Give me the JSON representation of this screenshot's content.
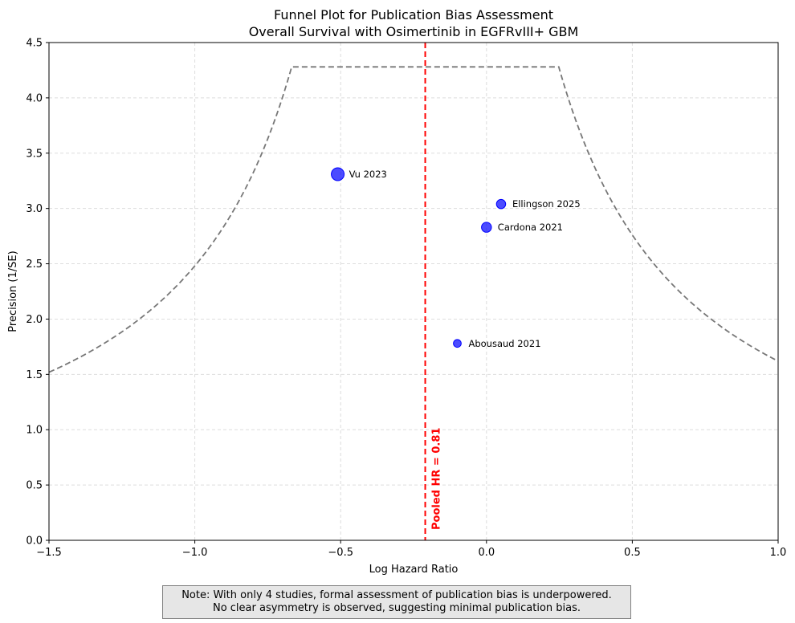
{
  "chart_data": {
    "type": "scatter",
    "title": "Funnel Plot for Publication Bias Assessment",
    "subtitle": "Overall Survival with Osimertinib in EGFRvIII+ GBM",
    "xlabel": "Log Hazard Ratio",
    "ylabel": "Precision (1/SE)",
    "xlim": [
      -1.5,
      1.0
    ],
    "ylim": [
      0.0,
      4.5
    ],
    "xticks": [
      -1.5,
      -1.0,
      -0.5,
      0.0,
      0.5,
      1.0
    ],
    "xtick_labels": [
      "−1.5",
      "−1.0",
      "−0.5",
      "0.0",
      "0.5",
      "1.0"
    ],
    "yticks": [
      0.0,
      0.5,
      1.0,
      1.5,
      2.0,
      2.5,
      3.0,
      3.5,
      4.0,
      4.5
    ],
    "ytick_labels": [
      "0.0",
      "0.5",
      "1.0",
      "1.5",
      "2.0",
      "2.5",
      "3.0",
      "3.5",
      "4.0",
      "4.5"
    ],
    "grid": true,
    "points": [
      {
        "label": "Vu 2023",
        "x": -0.51,
        "y": 3.31,
        "weight": 1.0
      },
      {
        "label": "Ellingson 2025",
        "x": 0.05,
        "y": 3.04,
        "weight": 0.5
      },
      {
        "label": "Cardona 2021",
        "x": 0.0,
        "y": 2.83,
        "weight": 0.6
      },
      {
        "label": "Abousaud 2021",
        "x": -0.1,
        "y": 1.78,
        "weight": 0.3
      }
    ],
    "pooled_log_hr": -0.21,
    "pooled_label": "Pooled HR = 0.81",
    "funnel_max_precision": 4.28,
    "colors": {
      "points": "#0000ff",
      "pooled_line": "#ff0000",
      "funnel": "#777777",
      "grid": "#dddddd"
    }
  },
  "note": {
    "line1": "Note: With only 4 studies, formal assessment of publication bias is underpowered.",
    "line2": "No clear asymmetry is observed, suggesting minimal publication bias."
  }
}
